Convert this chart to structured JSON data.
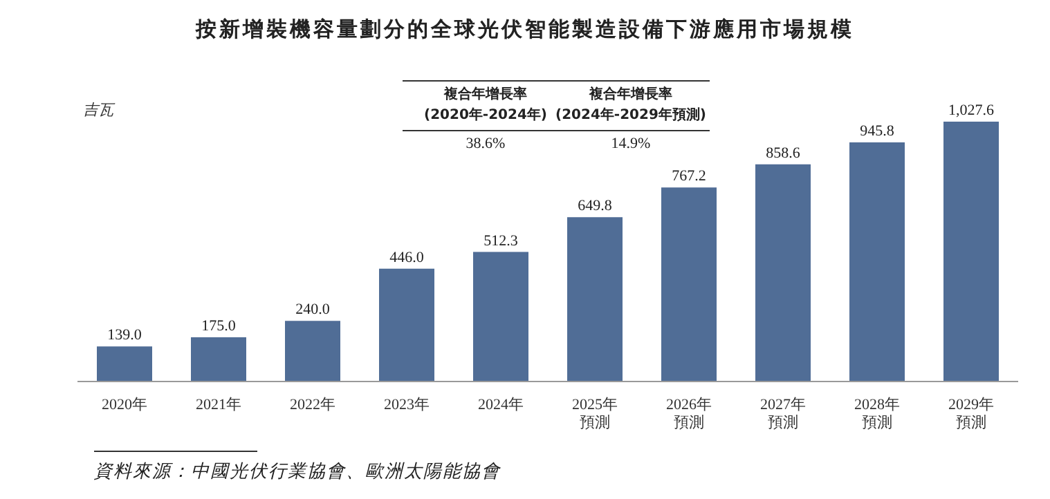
{
  "chart_data": {
    "type": "bar",
    "title": "按新增裝機容量劃分的全球光伏智能製造設備下游應用市場規模",
    "ylabel": "吉瓦",
    "categories": [
      "2020年",
      "2021年",
      "2022年",
      "2023年",
      "2024年",
      "2025年預測",
      "2026年預測",
      "2027年預測",
      "2028年預測",
      "2029年預測"
    ],
    "values": [
      139.0,
      175.0,
      240.0,
      446.0,
      512.3,
      649.8,
      767.2,
      858.6,
      945.8,
      1027.6
    ],
    "value_labels": [
      "139.0",
      "175.0",
      "240.0",
      "446.0",
      "512.3",
      "649.8",
      "767.2",
      "858.6",
      "945.8",
      "1,027.6"
    ],
    "color": "#506d96",
    "annotations": [
      "複合年增長率\n(2020年-2024年)",
      "複合年增長率\n(2024年-2029年預測)",
      "38.6%",
      "14.9%",
      "資料來源：中國光伏行業協會、歐洲太陽能協會"
    ]
  }
}
